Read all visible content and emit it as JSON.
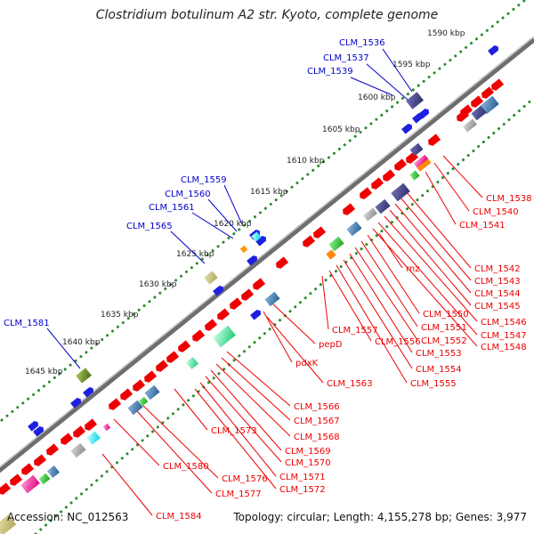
{
  "title": "Clostridium botulinum A2 str. Kyoto, complete genome",
  "accession": "Accession: NC_012563",
  "summary": "Topology: circular; Length: 4,155,278 bp; Genes: 3,977",
  "scale_ticks": [
    "1590 kbp",
    "1595 kbp",
    "1600 kbp",
    "1605 kbp",
    "1610 kbp",
    "1615 kbp",
    "1620 kbp",
    "1625 kbp",
    "1630 kbp",
    "1635 kbp",
    "1640 kbp",
    "1645 kbp"
  ],
  "outer_labels": [
    "CLM_1536",
    "CLM_1537",
    "CLM_1539",
    "CLM_1559",
    "CLM_1560",
    "CLM_1561",
    "CLM_1565",
    "CLM_1581"
  ],
  "inner_labels": [
    "CLM_1538",
    "CLM_1540",
    "CLM_1541",
    "CLM_1542",
    "CLM_1543",
    "CLM_1544",
    "CLM_1545",
    "CLM_1546",
    "CLM_1547",
    "CLM_1548",
    "rnz",
    "CLM_1550",
    "CLM_1551",
    "CLM_1552",
    "CLM_1553",
    "CLM_1554",
    "CLM_1555",
    "CLM_1556",
    "CLM_1557",
    "pepD",
    "pdxK",
    "CLM_1563",
    "CLM_1566",
    "CLM_1567",
    "CLM_1568",
    "CLM_1569",
    "CLM_1570",
    "CLM_1571",
    "CLM_1572",
    "CLM_1573",
    "CLM_1576",
    "CLM_1577",
    "CLM_1580",
    "CLM_1584"
  ],
  "colors": {
    "backbone": "#808080",
    "outer_label": "#0000cc",
    "inner_label": "#ee0000",
    "forward_gene": "#1f1fe0",
    "reverse_gene": "#ee0000",
    "tick_dots": "#2e8b2e"
  }
}
